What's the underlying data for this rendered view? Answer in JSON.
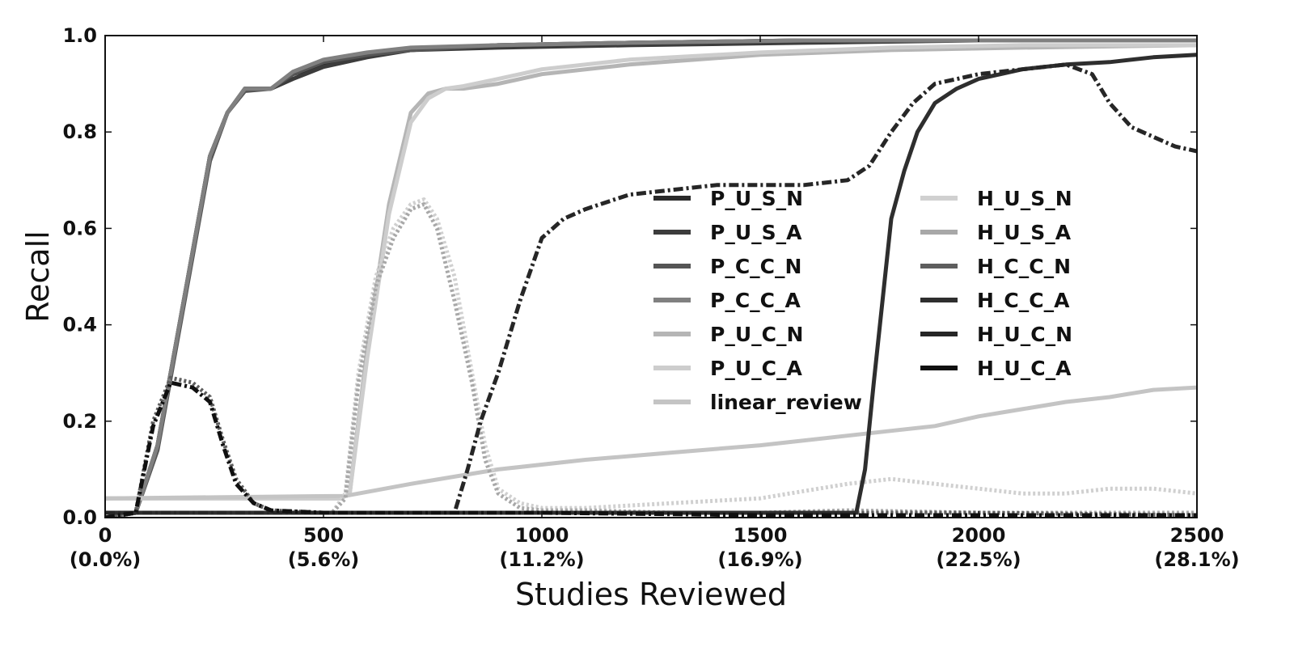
{
  "chart_data": {
    "type": "line",
    "title": "",
    "xlabel": "Studies Reviewed",
    "ylabel": "Recall",
    "xlim": [
      0,
      2500
    ],
    "ylim": [
      0,
      1.0
    ],
    "grid": false,
    "legend_position": "center-right, two columns",
    "x_ticks": [
      {
        "value": 0,
        "label": "0",
        "sublabel": "(0.0%)"
      },
      {
        "value": 500,
        "label": "500",
        "sublabel": "(5.6%)"
      },
      {
        "value": 1000,
        "label": "1000",
        "sublabel": "(11.2%)"
      },
      {
        "value": 1500,
        "label": "1500",
        "sublabel": "(16.9%)"
      },
      {
        "value": 2000,
        "label": "2000",
        "sublabel": "(22.5%)"
      },
      {
        "value": 2500,
        "label": "2500",
        "sublabel": "(28.1%)"
      }
    ],
    "y_ticks": [
      {
        "value": 0.0,
        "label": "0.0"
      },
      {
        "value": 0.2,
        "label": "0.2"
      },
      {
        "value": 0.4,
        "label": "0.4"
      },
      {
        "value": 0.6,
        "label": "0.6"
      },
      {
        "value": 0.8,
        "label": "0.8"
      },
      {
        "value": 1.0,
        "label": "1.0"
      }
    ],
    "series": [
      {
        "name": "P_U_S_N",
        "color": "#2a2a2a",
        "style": "solid",
        "x": [
          0,
          70,
          120,
          180,
          240,
          280,
          320,
          380,
          430,
          500,
          600,
          700,
          900,
          1200,
          1600,
          2000,
          2500
        ],
        "y": [
          0,
          0.01,
          0.15,
          0.45,
          0.75,
          0.84,
          0.89,
          0.89,
          0.92,
          0.94,
          0.96,
          0.97,
          0.98,
          0.985,
          0.99,
          0.99,
          0.99
        ]
      },
      {
        "name": "P_U_S_A",
        "color": "#3c3c3c",
        "style": "solid",
        "x": [
          0,
          70,
          120,
          180,
          240,
          280,
          320,
          380,
          430,
          500,
          600,
          700,
          900,
          1200,
          1600,
          2000,
          2500
        ],
        "y": [
          0,
          0.01,
          0.15,
          0.45,
          0.75,
          0.84,
          0.89,
          0.89,
          0.91,
          0.935,
          0.955,
          0.97,
          0.975,
          0.98,
          0.985,
          0.99,
          0.99
        ]
      },
      {
        "name": "P_C_C_N",
        "color": "#555555",
        "style": "solid",
        "x": [
          0,
          70,
          120,
          180,
          240,
          280,
          320,
          380,
          430,
          500,
          600,
          700,
          900,
          1200,
          1600,
          2000,
          2500
        ],
        "y": [
          0,
          0.01,
          0.14,
          0.44,
          0.74,
          0.84,
          0.885,
          0.89,
          0.92,
          0.945,
          0.96,
          0.97,
          0.98,
          0.985,
          0.99,
          0.99,
          0.99
        ]
      },
      {
        "name": "P_C_C_A",
        "color": "#808080",
        "style": "solid",
        "x": [
          0,
          70,
          120,
          180,
          240,
          280,
          320,
          380,
          430,
          500,
          600,
          700,
          900,
          1200,
          1600,
          2000,
          2500
        ],
        "y": [
          0,
          0.01,
          0.15,
          0.45,
          0.75,
          0.84,
          0.89,
          0.89,
          0.925,
          0.95,
          0.965,
          0.975,
          0.98,
          0.985,
          0.99,
          0.99,
          0.99
        ]
      },
      {
        "name": "P_U_C_N",
        "color": "#b5b5b5",
        "style": "solid",
        "x": [
          0,
          540,
          560,
          600,
          650,
          700,
          740,
          780,
          820,
          900,
          1000,
          1200,
          1500,
          1800,
          2100,
          2500
        ],
        "y": [
          0.04,
          0.04,
          0.05,
          0.35,
          0.65,
          0.84,
          0.88,
          0.89,
          0.89,
          0.9,
          0.92,
          0.94,
          0.96,
          0.97,
          0.975,
          0.98
        ]
      },
      {
        "name": "P_U_C_A",
        "color": "#cdcdcd",
        "style": "solid",
        "x": [
          0,
          540,
          560,
          600,
          650,
          700,
          740,
          780,
          820,
          900,
          1000,
          1200,
          1500,
          1800,
          2100,
          2500
        ],
        "y": [
          0.04,
          0.04,
          0.05,
          0.33,
          0.63,
          0.82,
          0.87,
          0.89,
          0.895,
          0.91,
          0.93,
          0.95,
          0.965,
          0.975,
          0.98,
          0.98
        ]
      },
      {
        "name": "linear_review",
        "color": "#c4c4c4",
        "style": "solid",
        "x": [
          0,
          550,
          700,
          900,
          1100,
          1300,
          1500,
          1700,
          1800,
          1900,
          2000,
          2100,
          2200,
          2300,
          2400,
          2500
        ],
        "y": [
          0.04,
          0.045,
          0.07,
          0.1,
          0.12,
          0.135,
          0.15,
          0.17,
          0.18,
          0.19,
          0.21,
          0.225,
          0.24,
          0.25,
          0.265,
          0.27
        ]
      },
      {
        "name": "H_U_S_N",
        "color": "#d0d0d0",
        "style": "dotted",
        "x": [
          0,
          520,
          550,
          580,
          620,
          660,
          700,
          730,
          760,
          800,
          840,
          870,
          900,
          950,
          1000,
          1100,
          1300,
          1500,
          1700,
          1800,
          1900,
          2000,
          2100,
          2200,
          2300,
          2400,
          2500
        ],
        "y": [
          0.01,
          0.01,
          0.05,
          0.3,
          0.5,
          0.6,
          0.65,
          0.66,
          0.62,
          0.5,
          0.3,
          0.15,
          0.06,
          0.03,
          0.02,
          0.02,
          0.03,
          0.04,
          0.07,
          0.08,
          0.07,
          0.06,
          0.05,
          0.05,
          0.06,
          0.06,
          0.05
        ]
      },
      {
        "name": "H_U_S_A",
        "color": "#a8a8a8",
        "style": "dotted",
        "x": [
          0,
          520,
          550,
          580,
          620,
          660,
          700,
          730,
          760,
          800,
          840,
          870,
          900,
          950,
          1000,
          1100,
          1300,
          1500,
          1700,
          2000,
          2500
        ],
        "y": [
          0.01,
          0.01,
          0.04,
          0.28,
          0.48,
          0.58,
          0.64,
          0.65,
          0.6,
          0.45,
          0.28,
          0.12,
          0.05,
          0.02,
          0.015,
          0.015,
          0.01,
          0.01,
          0.015,
          0.01,
          0.01
        ]
      },
      {
        "name": "H_C_C_N",
        "color": "#5e5e5e",
        "style": "dotted",
        "x": [
          0,
          70,
          110,
          150,
          200,
          240,
          270,
          300,
          340,
          380,
          500,
          1000,
          1500,
          2000,
          2500
        ],
        "y": [
          0,
          0.01,
          0.2,
          0.29,
          0.28,
          0.25,
          0.16,
          0.08,
          0.03,
          0.015,
          0.01,
          0.01,
          0.01,
          0.01,
          0.005
        ]
      },
      {
        "name": "H_C_C_A",
        "color": "#2e2e2e",
        "style": "solid",
        "x": [
          0,
          1720,
          1740,
          1760,
          1780,
          1800,
          1830,
          1860,
          1900,
          1950,
          2000,
          2050,
          2100,
          2150,
          2200,
          2300,
          2400,
          2500
        ],
        "y": [
          0.01,
          0.01,
          0.1,
          0.28,
          0.45,
          0.62,
          0.72,
          0.8,
          0.86,
          0.89,
          0.91,
          0.92,
          0.93,
          0.935,
          0.94,
          0.945,
          0.955,
          0.96
        ]
      },
      {
        "name": "H_U_C_N",
        "color": "#262626",
        "style": "dashdot",
        "x": [
          0,
          800,
          830,
          860,
          900,
          950,
          1000,
          1050,
          1100,
          1200,
          1300,
          1400,
          1500,
          1600,
          1700,
          1750,
          1800,
          1850,
          1900,
          2000,
          2100,
          2200,
          2260,
          2300,
          2350,
          2400,
          2450,
          2500
        ],
        "y": [
          0.01,
          0.01,
          0.1,
          0.2,
          0.3,
          0.45,
          0.58,
          0.62,
          0.64,
          0.67,
          0.68,
          0.69,
          0.69,
          0.69,
          0.7,
          0.73,
          0.8,
          0.86,
          0.9,
          0.92,
          0.93,
          0.94,
          0.92,
          0.86,
          0.81,
          0.79,
          0.77,
          0.76
        ]
      },
      {
        "name": "H_U_C_A",
        "color": "#101010",
        "style": "dashdot",
        "x": [
          0,
          70,
          110,
          150,
          200,
          240,
          270,
          300,
          340,
          380,
          500,
          1000,
          1500,
          2000,
          2500
        ],
        "y": [
          0,
          0.01,
          0.19,
          0.28,
          0.27,
          0.24,
          0.15,
          0.07,
          0.03,
          0.015,
          0.01,
          0.01,
          0.005,
          0.005,
          0.005
        ]
      }
    ],
    "legend": {
      "left_column": [
        "P_U_S_N",
        "P_U_S_A",
        "P_C_C_N",
        "P_C_C_A",
        "P_U_C_N",
        "P_U_C_A",
        "linear_review"
      ],
      "right_column": [
        "H_U_S_N",
        "H_U_S_A",
        "H_C_C_N",
        "H_C_C_A",
        "H_U_C_N",
        "H_U_C_A"
      ]
    }
  }
}
